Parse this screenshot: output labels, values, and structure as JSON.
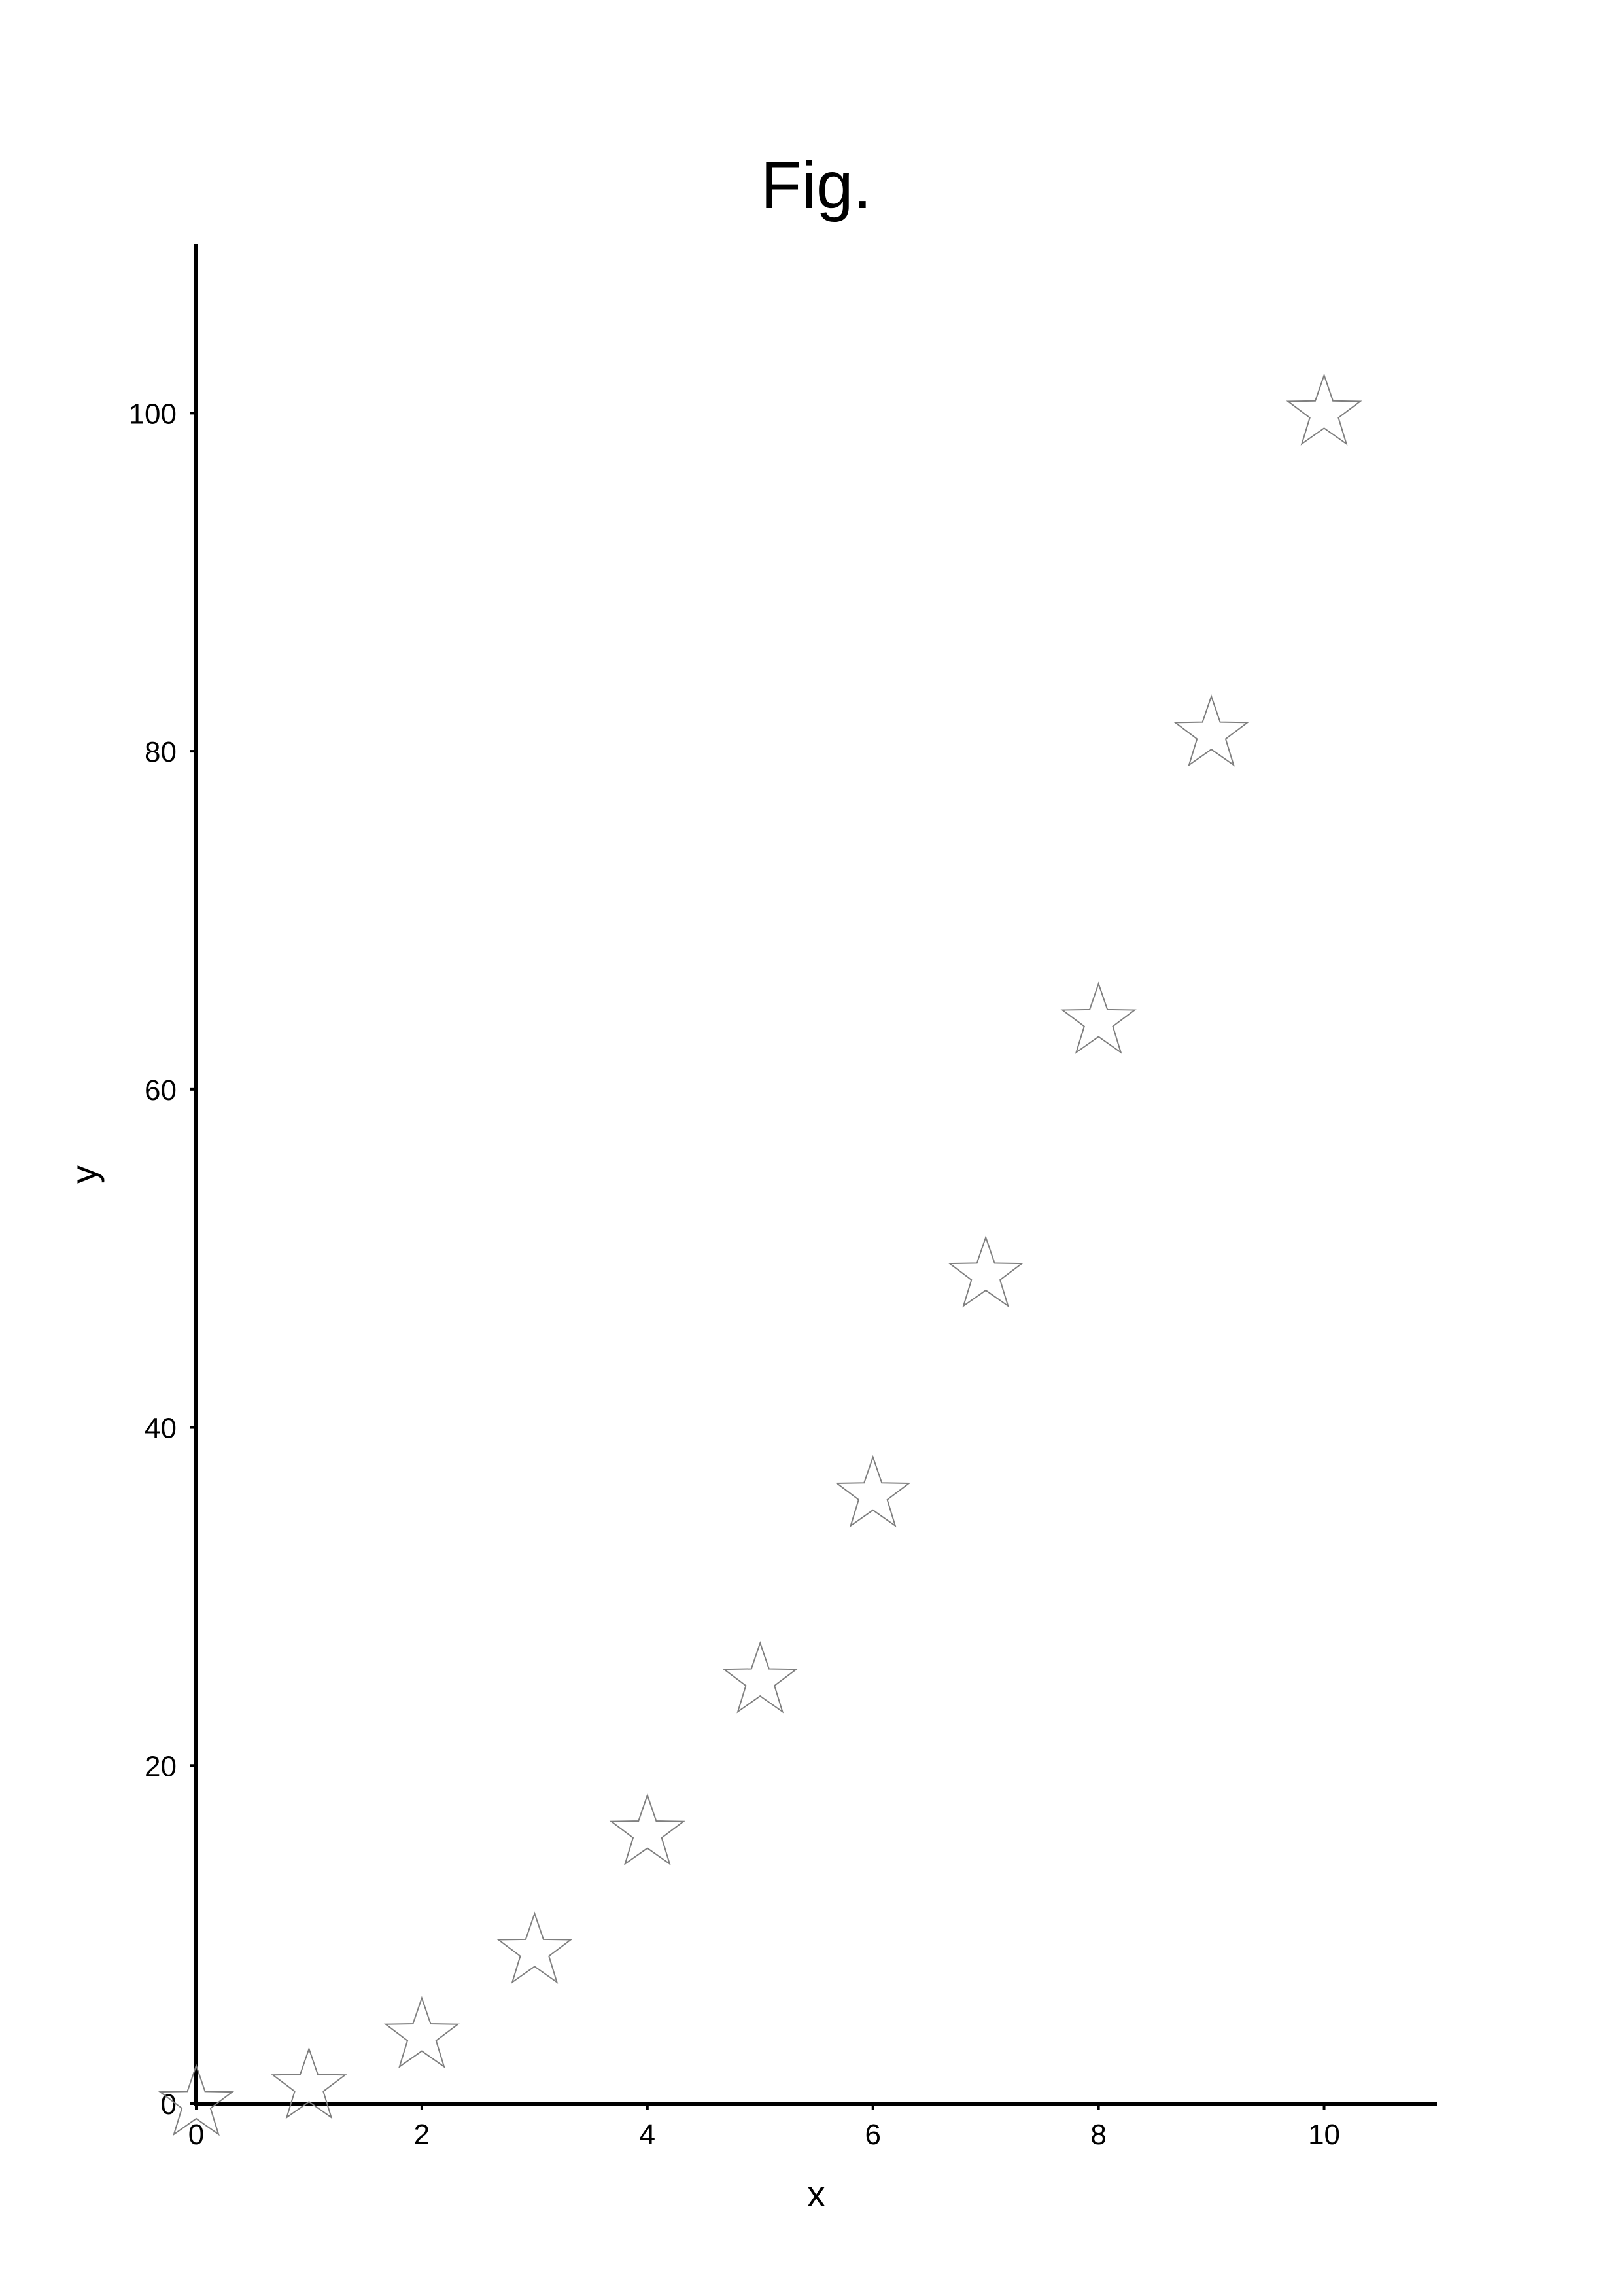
{
  "chart_data": {
    "type": "scatter",
    "title": "Fig.",
    "xlabel": "x",
    "ylabel": "y",
    "xlim": [
      0,
      11
    ],
    "ylim": [
      0,
      110
    ],
    "x_ticks": [
      0,
      2,
      4,
      6,
      8,
      10
    ],
    "y_ticks": [
      0,
      20,
      40,
      60,
      80,
      100
    ],
    "x_tick_labels": [
      "0",
      "2",
      "4",
      "6",
      "8",
      "10"
    ],
    "y_tick_labels": [
      "0",
      "20",
      "40",
      "60",
      "80",
      "100"
    ],
    "grid": false,
    "legend": "none",
    "marker": "star-outline",
    "marker_color": "#7f7f7f",
    "axis_color": "#000000",
    "series": [
      {
        "x": [
          0,
          1,
          2,
          3,
          4,
          5,
          6,
          7,
          8,
          9,
          10
        ],
        "y": [
          0,
          1,
          4,
          9,
          16,
          25,
          36,
          49,
          64,
          81,
          100
        ]
      }
    ]
  }
}
